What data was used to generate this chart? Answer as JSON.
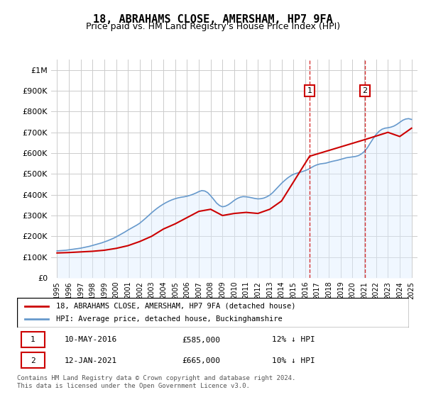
{
  "title": "18, ABRAHAMS CLOSE, AMERSHAM, HP7 9FA",
  "subtitle": "Price paid vs. HM Land Registry's House Price Index (HPI)",
  "footer": "Contains HM Land Registry data © Crown copyright and database right 2024.\nThis data is licensed under the Open Government Licence v3.0.",
  "legend_line1": "18, ABRAHAMS CLOSE, AMERSHAM, HP7 9FA (detached house)",
  "legend_line2": "HPI: Average price, detached house, Buckinghamshire",
  "sale1_label": "1",
  "sale1_date": "10-MAY-2016",
  "sale1_price": "£585,000",
  "sale1_hpi": "12% ↓ HPI",
  "sale1_year": 2016.37,
  "sale1_value": 585000,
  "sale2_label": "2",
  "sale2_date": "12-JAN-2021",
  "sale2_price": "£665,000",
  "sale2_hpi": "10% ↓ HPI",
  "sale2_year": 2021.04,
  "sale2_value": 665000,
  "red_color": "#cc0000",
  "blue_color": "#6699cc",
  "shade_color": "#ddeeff",
  "grid_color": "#cccccc",
  "marker_box_color": "#cc0000",
  "ylim": [
    0,
    1050000
  ],
  "xlim": [
    1994.5,
    2025.5
  ],
  "yticks": [
    0,
    100000,
    200000,
    300000,
    400000,
    500000,
    600000,
    700000,
    800000,
    900000,
    1000000
  ],
  "ytick_labels": [
    "£0",
    "£100K",
    "£200K",
    "£300K",
    "£400K",
    "£500K",
    "£600K",
    "£700K",
    "£800K",
    "£900K",
    "£1M"
  ],
  "xticks": [
    1995,
    1996,
    1997,
    1998,
    1999,
    2000,
    2001,
    2002,
    2003,
    2004,
    2005,
    2006,
    2007,
    2008,
    2009,
    2010,
    2011,
    2012,
    2013,
    2014,
    2015,
    2016,
    2017,
    2018,
    2019,
    2020,
    2021,
    2022,
    2023,
    2024,
    2025
  ],
  "hpi_years": [
    1995,
    1995.25,
    1995.5,
    1995.75,
    1996,
    1996.25,
    1996.5,
    1996.75,
    1997,
    1997.25,
    1997.5,
    1997.75,
    1998,
    1998.25,
    1998.5,
    1998.75,
    1999,
    1999.25,
    1999.5,
    1999.75,
    2000,
    2000.25,
    2000.5,
    2000.75,
    2001,
    2001.25,
    2001.5,
    2001.75,
    2002,
    2002.25,
    2002.5,
    2002.75,
    2003,
    2003.25,
    2003.5,
    2003.75,
    2004,
    2004.25,
    2004.5,
    2004.75,
    2005,
    2005.25,
    2005.5,
    2005.75,
    2006,
    2006.25,
    2006.5,
    2006.75,
    2007,
    2007.25,
    2007.5,
    2007.75,
    2008,
    2008.25,
    2008.5,
    2008.75,
    2009,
    2009.25,
    2009.5,
    2009.75,
    2010,
    2010.25,
    2010.5,
    2010.75,
    2011,
    2011.25,
    2011.5,
    2011.75,
    2012,
    2012.25,
    2012.5,
    2012.75,
    2013,
    2013.25,
    2013.5,
    2013.75,
    2014,
    2014.25,
    2014.5,
    2014.75,
    2015,
    2015.25,
    2015.5,
    2015.75,
    2016,
    2016.25,
    2016.5,
    2016.75,
    2017,
    2017.25,
    2017.5,
    2017.75,
    2018,
    2018.25,
    2018.5,
    2018.75,
    2019,
    2019.25,
    2019.5,
    2019.75,
    2020,
    2020.25,
    2020.5,
    2020.75,
    2021,
    2021.25,
    2021.5,
    2021.75,
    2022,
    2022.25,
    2022.5,
    2022.75,
    2023,
    2023.25,
    2023.5,
    2023.75,
    2024,
    2024.25,
    2024.5,
    2024.75,
    2025
  ],
  "hpi_values": [
    130000,
    131000,
    132000,
    133000,
    135000,
    137000,
    139000,
    141000,
    143000,
    146000,
    149000,
    152000,
    156000,
    160000,
    164000,
    168000,
    173000,
    178000,
    184000,
    190000,
    197000,
    205000,
    213000,
    221000,
    230000,
    238000,
    246000,
    254000,
    263000,
    275000,
    287000,
    300000,
    313000,
    325000,
    336000,
    346000,
    355000,
    363000,
    370000,
    376000,
    381000,
    385000,
    388000,
    390000,
    393000,
    397000,
    402000,
    408000,
    415000,
    420000,
    418000,
    410000,
    395000,
    378000,
    360000,
    348000,
    342000,
    345000,
    352000,
    362000,
    373000,
    382000,
    388000,
    391000,
    390000,
    388000,
    385000,
    382000,
    380000,
    381000,
    384000,
    390000,
    398000,
    410000,
    425000,
    440000,
    455000,
    468000,
    480000,
    490000,
    498000,
    503000,
    507000,
    511000,
    516000,
    522000,
    530000,
    538000,
    544000,
    548000,
    550000,
    552000,
    556000,
    560000,
    563000,
    566000,
    570000,
    574000,
    578000,
    580000,
    582000,
    584000,
    588000,
    596000,
    608000,
    625000,
    648000,
    670000,
    690000,
    705000,
    715000,
    720000,
    722000,
    725000,
    730000,
    738000,
    748000,
    758000,
    764000,
    766000,
    762000
  ],
  "red_years": [
    1995,
    1996,
    1997,
    1998,
    1999,
    2000,
    2001,
    2002,
    2003,
    2004,
    2005,
    2006,
    2007,
    2008,
    2009,
    2010,
    2011,
    2012,
    2013,
    2014,
    2016.37,
    2021.04,
    2023,
    2024,
    2025
  ],
  "red_values": [
    120000,
    122000,
    125000,
    128000,
    133000,
    142000,
    155000,
    175000,
    200000,
    235000,
    260000,
    290000,
    320000,
    330000,
    300000,
    310000,
    315000,
    310000,
    330000,
    370000,
    585000,
    665000,
    700000,
    680000,
    720000
  ]
}
